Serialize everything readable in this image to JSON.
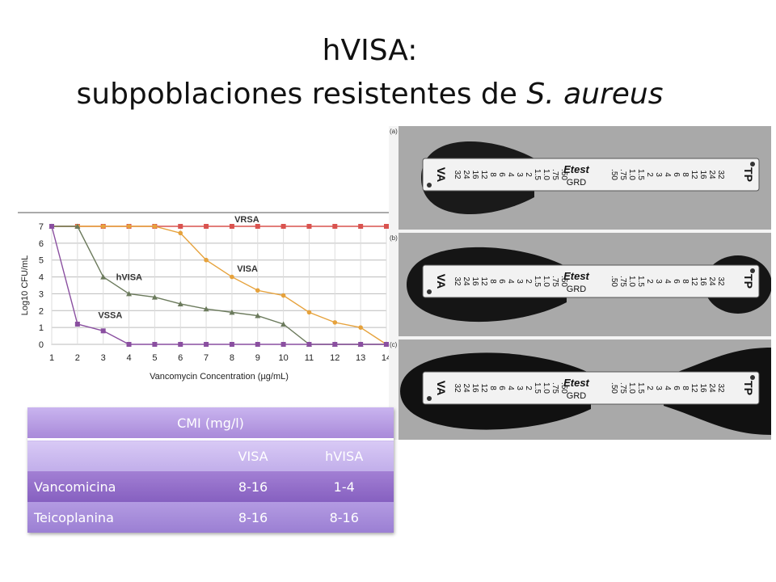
{
  "title": {
    "line1": "hVISA:",
    "line2_plain": "subpoblaciones resistentes de ",
    "line2_italic": "S. aureus"
  },
  "colors": {
    "vrsa": "#d9534f",
    "visa": "#e6a23c",
    "hvisa": "#6b7a5c",
    "vssa": "#8a4fa0",
    "table_header": "#b59be0",
    "table_row_dark": "#8e69c7"
  },
  "chart_data": {
    "type": "line",
    "xlabel": "Vancomycin Concentration (µg/mL)",
    "ylabel": "Log10 CFU/mL",
    "x": [
      1,
      2,
      3,
      4,
      5,
      6,
      7,
      8,
      9,
      10,
      11,
      12,
      13,
      14
    ],
    "ylim": [
      0,
      7
    ],
    "yticks": [
      0,
      1,
      2,
      3,
      4,
      5,
      6,
      7
    ],
    "grid": true,
    "series": [
      {
        "name": "VRSA",
        "color": "#d9534f",
        "marker": "square",
        "values": [
          7,
          7,
          7,
          7,
          7,
          7,
          7,
          7,
          7,
          7,
          7,
          7,
          7,
          7
        ]
      },
      {
        "name": "VISA",
        "color": "#e6a23c",
        "marker": "circle",
        "values": [
          7,
          7,
          7,
          7,
          7,
          6.6,
          5,
          4,
          3.2,
          2.9,
          1.9,
          1.3,
          1,
          0
        ]
      },
      {
        "name": "hVISA",
        "color": "#6b7a5c",
        "marker": "triangle",
        "values": [
          7,
          7,
          4,
          3,
          2.8,
          2.4,
          2.1,
          1.9,
          1.7,
          1.2,
          0,
          0,
          0,
          0
        ]
      },
      {
        "name": "VSSA",
        "color": "#8a4fa0",
        "marker": "square",
        "values": [
          7,
          1.2,
          0.8,
          0,
          0,
          0,
          0,
          0,
          0,
          0,
          0,
          0,
          0,
          0
        ]
      }
    ]
  },
  "strips": {
    "panels": [
      {
        "letter": "(a)"
      },
      {
        "letter": "(b)"
      },
      {
        "letter": "(c)"
      }
    ],
    "left_code": "VA",
    "right_code": "TP",
    "brand": "Etest",
    "brand_sub": "GRD",
    "scale_left": [
      "32",
      "24",
      "16",
      "12",
      "8",
      "6",
      "4",
      "3",
      "2",
      "1.5",
      "1.0",
      ".75",
      ".50"
    ],
    "scale_right": [
      ".50",
      ".75",
      "1.0",
      "1.5",
      "2",
      "3",
      "4",
      "6",
      "8",
      "12",
      "16",
      "24",
      "32"
    ]
  },
  "table": {
    "header": "CMI (mg/l)",
    "columns": [
      "",
      "VISA",
      "hVISA"
    ],
    "rows": [
      {
        "label": "Vancomicina",
        "visa": "8-16",
        "hvisa": "1-4"
      },
      {
        "label": "Teicoplanina",
        "visa": "8-16",
        "hvisa": "8-16"
      }
    ]
  }
}
